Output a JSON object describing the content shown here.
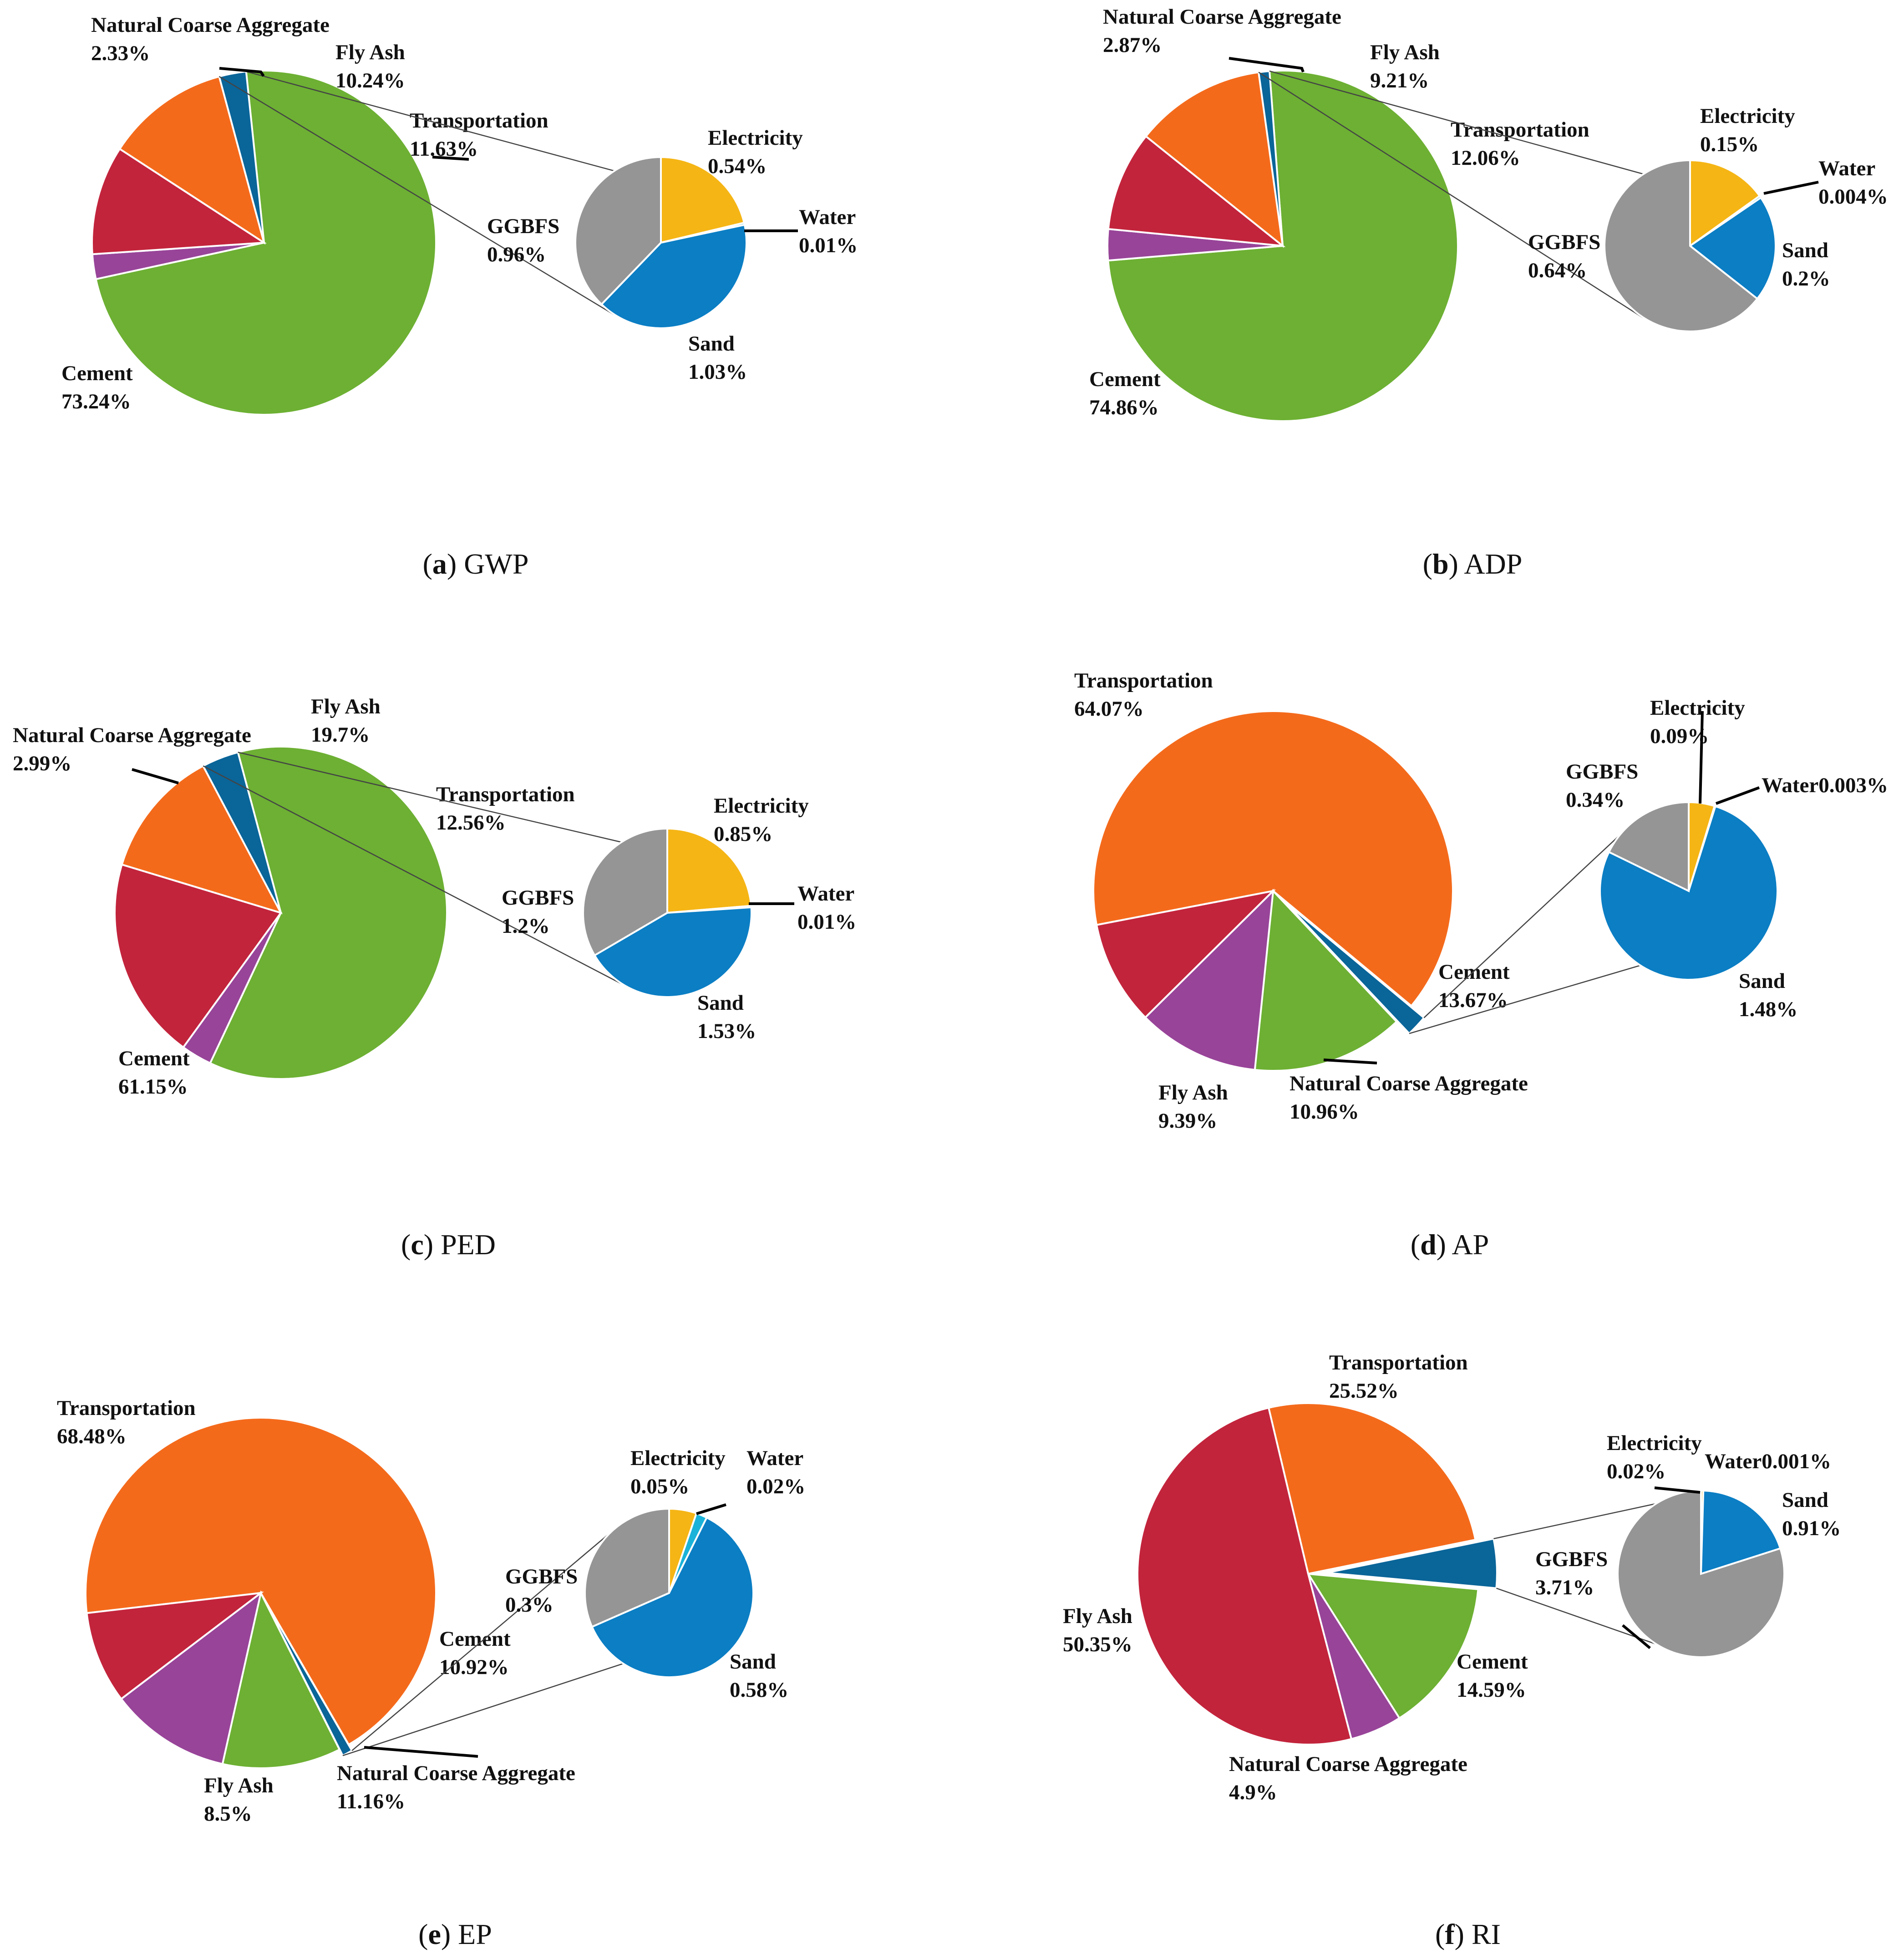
{
  "colors": {
    "Cement": "#6db033",
    "Natural Coarse Aggregate": "#984499",
    "Fly Ash": "#c2243c",
    "Transportation": "#f46a1b",
    "Other": "#0a6599",
    "Electricity": "#f5b515",
    "Water": "#1ab2d8",
    "Sand": "#0b7ec4",
    "GGBFS": "#959595"
  },
  "chart_data": [
    {
      "type": "bar-of-pie",
      "caption_letter": "a",
      "caption_text": " GWP",
      "main": [
        {
          "name": "Cement",
          "value": 73.24,
          "label": "73.24%"
        },
        {
          "name": "Natural Coarse Aggregate",
          "value": 2.33,
          "label": "2.33%"
        },
        {
          "name": "Fly Ash",
          "value": 10.24,
          "label": "10.24%"
        },
        {
          "name": "Transportation",
          "value": 11.63,
          "label": "11.63%"
        },
        {
          "name": "Other",
          "value": 2.54
        }
      ],
      "secondary": [
        {
          "name": "Electricity",
          "value": 0.54,
          "label": "0.54%"
        },
        {
          "name": "Water",
          "value": 0.01,
          "label": "0.01%"
        },
        {
          "name": "Sand",
          "value": 1.03,
          "label": "1.03%"
        },
        {
          "name": "GGBFS",
          "value": 0.96,
          "label": "0.96%"
        }
      ]
    },
    {
      "type": "bar-of-pie",
      "caption_letter": "b",
      "caption_text": " ADP",
      "main": [
        {
          "name": "Cement",
          "value": 74.86,
          "label": "74.86%"
        },
        {
          "name": "Natural Coarse Aggregate",
          "value": 2.87,
          "label": "2.87%"
        },
        {
          "name": "Fly Ash",
          "value": 9.21,
          "label": "9.21%"
        },
        {
          "name": "Transportation",
          "value": 12.06,
          "label": "12.06%"
        },
        {
          "name": "Other",
          "value": 0.994
        }
      ],
      "secondary": [
        {
          "name": "Electricity",
          "value": 0.15,
          "label": "0.15%"
        },
        {
          "name": "Water",
          "value": 0.004,
          "label": "0.004%"
        },
        {
          "name": "Sand",
          "value": 0.2,
          "label": "0.2%"
        },
        {
          "name": "GGBFS",
          "value": 0.64,
          "label": "0.64%"
        }
      ]
    },
    {
      "type": "bar-of-pie",
      "caption_letter": "c",
      "caption_text": " PED",
      "main": [
        {
          "name": "Cement",
          "value": 61.15,
          "label": "61.15%"
        },
        {
          "name": "Natural Coarse Aggregate",
          "value": 2.99,
          "label": "2.99%"
        },
        {
          "name": "Fly Ash",
          "value": 19.7,
          "label": "19.7%"
        },
        {
          "name": "Transportation",
          "value": 12.56,
          "label": "12.56%"
        },
        {
          "name": "Other",
          "value": 3.59
        }
      ],
      "secondary": [
        {
          "name": "Electricity",
          "value": 0.85,
          "label": "0.85%"
        },
        {
          "name": "Water",
          "value": 0.01,
          "label": "0.01%"
        },
        {
          "name": "Sand",
          "value": 1.53,
          "label": "1.53%"
        },
        {
          "name": "GGBFS",
          "value": 1.2,
          "label": "1.2%"
        }
      ]
    },
    {
      "type": "bar-of-pie",
      "caption_letter": "d",
      "caption_text": " AP",
      "main": [
        {
          "name": "Transportation",
          "value": 64.07,
          "label": "64.07%"
        },
        {
          "name": "Other",
          "value": 1.913
        },
        {
          "name": "Cement",
          "value": 13.67,
          "label": "13.67%"
        },
        {
          "name": "Natural Coarse Aggregate",
          "value": 10.96,
          "label": "10.96%"
        },
        {
          "name": "Fly Ash",
          "value": 9.39,
          "label": "9.39%"
        }
      ],
      "secondary": [
        {
          "name": "Electricity",
          "value": 0.09,
          "label": "0.09%"
        },
        {
          "name": "Water",
          "value": 0.003,
          "label": "0.003%"
        },
        {
          "name": "Sand",
          "value": 1.48,
          "label": "1.48%"
        },
        {
          "name": "GGBFS",
          "value": 0.34,
          "label": "0.34%"
        }
      ]
    },
    {
      "type": "bar-of-pie",
      "caption_letter": "e",
      "caption_text": " EP",
      "main": [
        {
          "name": "Transportation",
          "value": 68.48,
          "label": "68.48%"
        },
        {
          "name": "Other",
          "value": 0.95
        },
        {
          "name": "Cement",
          "value": 10.92,
          "label": "10.92%"
        },
        {
          "name": "Natural Coarse Aggregate",
          "value": 11.16,
          "label": "11.16%"
        },
        {
          "name": "Fly Ash",
          "value": 8.5,
          "label": "8.5%"
        }
      ],
      "secondary": [
        {
          "name": "Electricity",
          "value": 0.05,
          "label": "0.05%"
        },
        {
          "name": "Water",
          "value": 0.02,
          "label": "0.02%"
        },
        {
          "name": "Sand",
          "value": 0.58,
          "label": "0.58%"
        },
        {
          "name": "GGBFS",
          "value": 0.3,
          "label": "0.3%"
        }
      ]
    },
    {
      "type": "bar-of-pie",
      "caption_letter": "f",
      "caption_text": " RI",
      "main": [
        {
          "name": "Transportation",
          "value": 25.52,
          "label": "25.52%"
        },
        {
          "name": "Other",
          "value": 4.641
        },
        {
          "name": "Cement",
          "value": 14.59,
          "label": "14.59%"
        },
        {
          "name": "Natural Coarse Aggregate",
          "value": 4.9,
          "label": "4.9%"
        },
        {
          "name": "Fly Ash",
          "value": 50.35,
          "label": "50.35%"
        }
      ],
      "secondary": [
        {
          "name": "Electricity",
          "value": 0.02,
          "label": "0.02%"
        },
        {
          "name": "Water",
          "value": 0.001,
          "label": "0.001%"
        },
        {
          "name": "Sand",
          "value": 0.91,
          "label": "0.91%"
        },
        {
          "name": "GGBFS",
          "value": 3.71,
          "label": "3.71%"
        }
      ]
    }
  ]
}
